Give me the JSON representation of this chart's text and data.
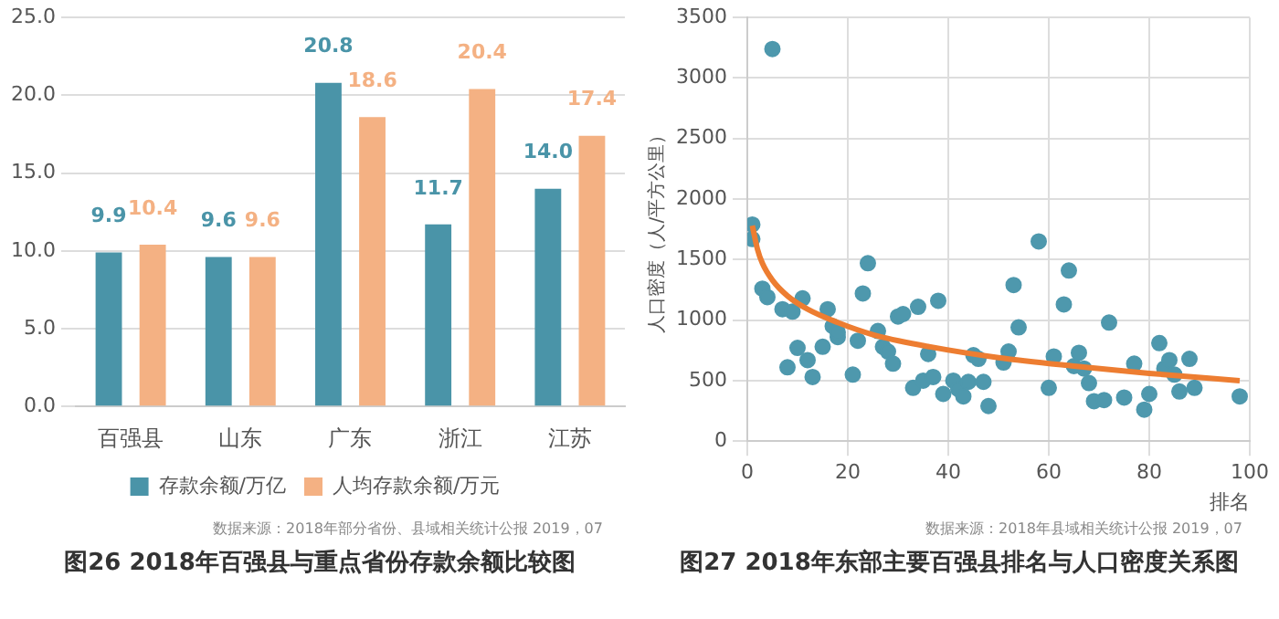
{
  "chart_data": [
    {
      "type": "bar",
      "title": "图26  2018年百强县与重点省份存款余额比较图",
      "annotations": [
        "数据来源：2018年部分省份、县域相关统计公报  2019，07"
      ],
      "categories": [
        "百强县",
        "山东",
        "广东",
        "浙江",
        "江苏"
      ],
      "series": [
        {
          "name": "存款余额/万亿",
          "color": "#4a94a8",
          "values": [
            9.9,
            9.6,
            20.8,
            11.7,
            14.0
          ],
          "value_labels": [
            "9.9",
            "9.6",
            "20.8",
            "11.7",
            "14.0"
          ]
        },
        {
          "name": "人均存款余额/万元",
          "color": "#f4b183",
          "values": [
            10.4,
            9.6,
            18.6,
            20.4,
            17.4
          ],
          "value_labels": [
            "10.4",
            "9.6",
            "18.6",
            "20.4",
            "17.4"
          ]
        }
      ],
      "ylim": [
        0,
        25
      ],
      "yticks": [
        {
          "value": 0,
          "label": "0.0"
        },
        {
          "value": 5,
          "label": "5.0"
        },
        {
          "value": 10,
          "label": "10.0"
        },
        {
          "value": 15,
          "label": "15.0"
        },
        {
          "value": 20,
          "label": "20.0"
        },
        {
          "value": 25,
          "label": "25.0"
        }
      ],
      "grid": "y",
      "legend": "bottom"
    },
    {
      "type": "scatter",
      "title": "图27  2018年东部主要百强县排名与人口密度关系图",
      "annotations": [
        "数据来源：2018年县域相关统计公报  2019，07"
      ],
      "xlabel": "排名",
      "ylabel": "人口密度（人/平方公里）",
      "series": [
        {
          "type": "scatter",
          "marker": "circle",
          "color": "#4e98ad",
          "x": [
            1,
            1,
            3,
            4,
            5,
            7,
            8,
            9,
            10,
            11,
            12,
            13,
            15,
            16,
            17,
            18,
            18,
            21,
            22,
            23,
            24,
            26,
            27,
            28,
            29,
            30,
            31,
            33,
            34,
            35,
            36,
            37,
            38,
            39,
            41,
            42,
            43,
            44,
            45,
            46,
            47,
            48,
            51,
            52,
            53,
            54,
            58,
            60,
            61,
            63,
            64,
            65,
            66,
            67,
            68,
            69,
            71,
            72,
            75,
            77,
            79,
            80,
            82,
            83,
            84,
            85,
            86,
            88,
            89,
            98
          ],
          "values": [
            1790,
            1670,
            1260,
            1190,
            3240,
            1090,
            610,
            1070,
            770,
            1180,
            670,
            530,
            780,
            1090,
            950,
            860,
            900,
            550,
            830,
            1220,
            1470,
            910,
            780,
            740,
            640,
            1030,
            1050,
            440,
            1110,
            500,
            720,
            530,
            1160,
            390,
            500,
            430,
            370,
            490,
            710,
            680,
            490,
            290,
            650,
            740,
            1290,
            940,
            1650,
            440,
            700,
            1130,
            1410,
            620,
            730,
            600,
            480,
            330,
            340,
            980,
            360,
            640,
            260,
            390,
            810,
            600,
            670,
            550,
            410,
            680,
            440,
            370
          ]
        },
        {
          "type": "line",
          "marker": "none",
          "color": "#ed7d31",
          "x": [
            1,
            2,
            3,
            5,
            8,
            12,
            18,
            25,
            35,
            50,
            65,
            80,
            98
          ],
          "values": [
            1780,
            1590,
            1470,
            1330,
            1200,
            1090,
            980,
            880,
            790,
            690,
            620,
            560,
            500
          ]
        }
      ],
      "xlim": [
        0,
        100
      ],
      "xticks": [
        0,
        20,
        40,
        60,
        80,
        100
      ],
      "ylim": [
        0,
        3500
      ],
      "yticks": [
        0,
        500,
        1000,
        1500,
        2000,
        2500,
        3000,
        3500
      ],
      "grid": true
    }
  ]
}
